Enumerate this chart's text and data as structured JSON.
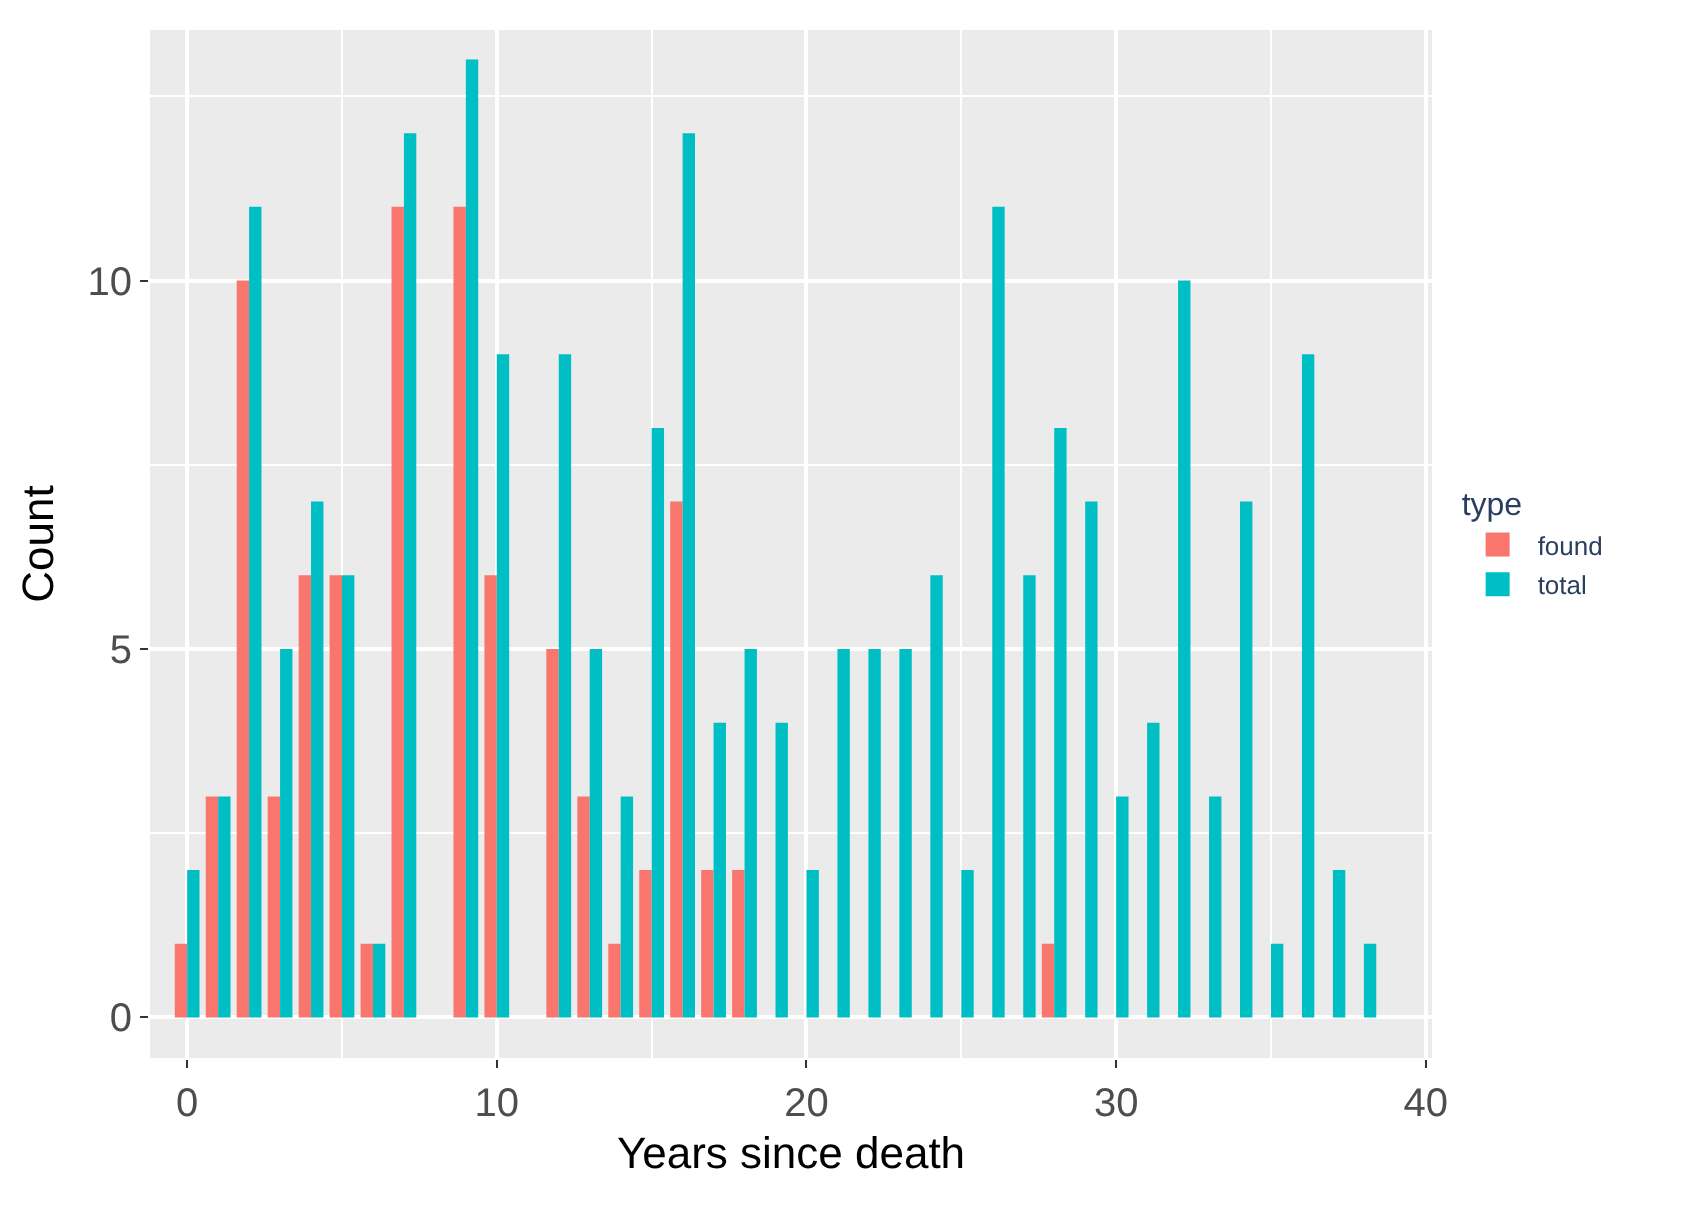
{
  "chart_data": {
    "type": "bar",
    "xlabel": "Years since death",
    "ylabel": "Count",
    "legend_title": "type",
    "x": [
      0,
      1,
      2,
      3,
      4,
      5,
      6,
      7,
      8,
      9,
      10,
      11,
      12,
      13,
      14,
      15,
      16,
      17,
      18,
      19,
      20,
      21,
      22,
      23,
      24,
      25,
      26,
      27,
      28,
      29,
      30,
      31,
      32,
      33,
      34,
      35,
      36,
      37,
      38
    ],
    "series": [
      {
        "name": "found",
        "color": "#f8766d",
        "values": [
          1,
          3,
          10,
          3,
          6,
          6,
          1,
          11,
          null,
          11,
          6,
          null,
          5,
          3,
          1,
          2,
          7,
          2,
          2,
          null,
          null,
          null,
          null,
          null,
          null,
          null,
          null,
          null,
          1,
          null,
          null,
          null,
          null,
          null,
          null,
          null,
          null,
          null,
          null
        ]
      },
      {
        "name": "total",
        "color": "#00bfc4",
        "values": [
          2,
          3,
          11,
          5,
          7,
          6,
          1,
          12,
          null,
          13,
          9,
          null,
          9,
          5,
          3,
          8,
          12,
          4,
          5,
          4,
          2,
          5,
          5,
          5,
          6,
          2,
          11,
          6,
          8,
          7,
          3,
          4,
          10,
          3,
          7,
          1,
          9,
          2,
          1
        ]
      }
    ],
    "xlim": [
      -1.2,
      40.2
    ],
    "xticks": [
      0,
      10,
      20,
      30,
      40
    ],
    "ylim": [
      -0.55,
      13.4
    ],
    "yticks": [
      0,
      5,
      10
    ],
    "grid": true,
    "legend": "right"
  }
}
